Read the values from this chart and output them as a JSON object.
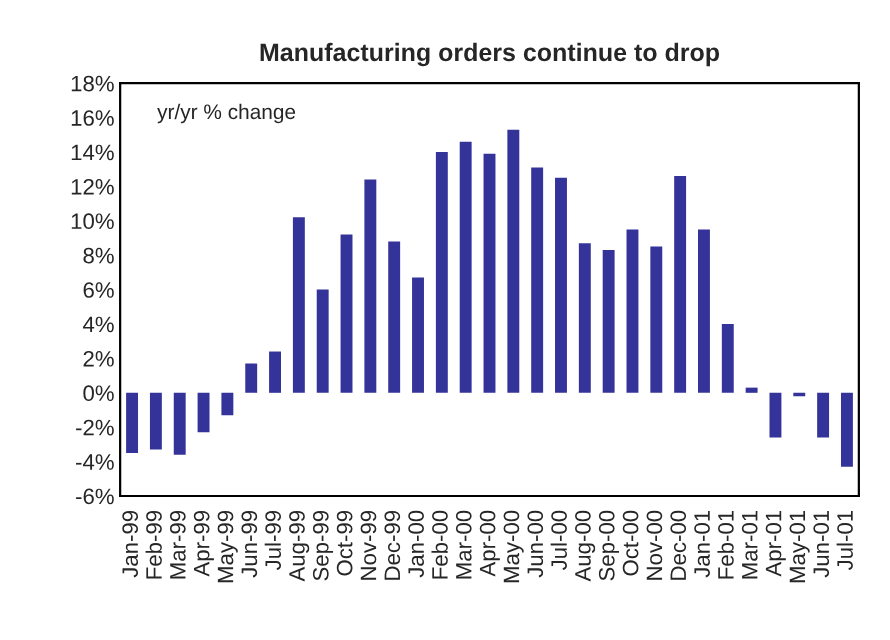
{
  "chart_data": {
    "type": "bar",
    "title": "Manufacturing orders continue to drop",
    "annotations": [
      "yr/yr % change"
    ],
    "categories": [
      "Jan-99",
      "Feb-99",
      "Mar-99",
      "Apr-99",
      "May-99",
      "Jun-99",
      "Jul-99",
      "Aug-99",
      "Sep-99",
      "Oct-99",
      "Nov-99",
      "Dec-99",
      "Jan-00",
      "Feb-00",
      "Mar-00",
      "Apr-00",
      "May-00",
      "Jun-00",
      "Jul-00",
      "Aug-00",
      "Sep-00",
      "Oct-00",
      "Nov-00",
      "Dec-00",
      "Jan-01",
      "Feb-01",
      "Mar-01",
      "Apr-01",
      "May-01",
      "Jun-01",
      "Jul-01"
    ],
    "values": [
      -3.5,
      -3.3,
      -3.6,
      -2.3,
      -1.3,
      1.7,
      2.4,
      10.2,
      6.0,
      9.2,
      12.4,
      8.8,
      6.7,
      14.0,
      14.6,
      13.9,
      15.3,
      13.1,
      12.5,
      8.7,
      8.3,
      9.5,
      8.5,
      12.6,
      9.5,
      4.0,
      0.3,
      -2.6,
      -0.2,
      -2.6,
      -4.3
    ],
    "color": "#333399",
    "ylim": [
      -6,
      18
    ],
    "yticks": [
      {
        "value": -6,
        "label": "-6%"
      },
      {
        "value": -4,
        "label": "-4%"
      },
      {
        "value": -2,
        "label": "-2%"
      },
      {
        "value": 0,
        "label": "0%"
      },
      {
        "value": 2,
        "label": "2%"
      },
      {
        "value": 4,
        "label": "4%"
      },
      {
        "value": 6,
        "label": "6%"
      },
      {
        "value": 8,
        "label": "8%"
      },
      {
        "value": 10,
        "label": "10%"
      },
      {
        "value": 12,
        "label": "12%"
      },
      {
        "value": 14,
        "label": "14%"
      },
      {
        "value": 16,
        "label": "16%"
      },
      {
        "value": 18,
        "label": "18%"
      }
    ],
    "grid": false,
    "legend": false
  }
}
